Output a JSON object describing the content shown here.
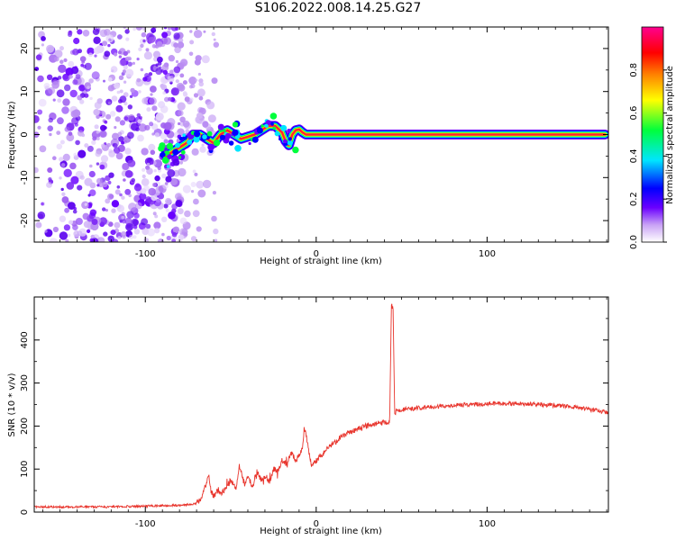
{
  "page": {
    "title": "S106.2022.008.14.25.G27"
  },
  "chart_data": [
    {
      "type": "heatmap",
      "xlabel": "Height of straight line (km)",
      "ylabel": "Frequency (Hz)",
      "xlim": [
        -165,
        171
      ],
      "ylim": [
        -25,
        25
      ],
      "x_ticks": [
        -100,
        0,
        100
      ],
      "y_ticks": [
        -20,
        -10,
        0,
        10,
        20
      ],
      "colorbar": {
        "label": "Normalized spectral amplitude",
        "range": [
          0,
          1
        ],
        "ticks": [
          "0.0",
          "0.2",
          "0.4",
          "0.6",
          "0.8"
        ],
        "colors": [
          "#ffffff",
          "#b585f0",
          "#6a00ff",
          "#0000ff",
          "#00e5ff",
          "#00ff3c",
          "#ffff00",
          "#ff8000",
          "#ff0000",
          "#ff0080"
        ]
      },
      "peak_ridge": {
        "x": [
          -88,
          -84,
          -80,
          -76,
          -72,
          -68,
          -64,
          -60,
          -56,
          -52,
          -48,
          -44,
          -40,
          -36,
          -32,
          -28,
          -24,
          -20,
          -18,
          -16,
          -14,
          -12,
          -10,
          -8,
          -6,
          -4,
          -2,
          0,
          10,
          40,
          80,
          120,
          160,
          169
        ],
        "y": [
          -5,
          -4,
          -3,
          -2,
          0,
          0,
          -1,
          -2,
          0,
          1,
          0,
          -1,
          -0.5,
          0,
          1,
          2,
          2,
          0.5,
          -1.5,
          -2.5,
          0,
          1,
          1.2,
          0.5,
          0,
          0,
          0,
          0,
          0,
          0,
          0,
          0,
          0,
          0
        ]
      },
      "noise_region_x": [
        -165,
        -62
      ]
    },
    {
      "type": "line",
      "xlabel": "Height of straight line (km)",
      "ylabel": "SNR (10 * v/v)",
      "xlim": [
        -165,
        171
      ],
      "ylim": [
        0,
        500
      ],
      "x_ticks": [
        -100,
        0,
        100
      ],
      "y_ticks": [
        0,
        100,
        200,
        300,
        400
      ],
      "color": "#e8342c",
      "x": [
        -165,
        -150,
        -130,
        -110,
        -90,
        -80,
        -75,
        -70,
        -67,
        -65,
        -63,
        -62,
        -60,
        -58,
        -55,
        -52,
        -50,
        -47,
        -45,
        -42,
        -40,
        -37,
        -35,
        -32,
        -30,
        -27,
        -25,
        -22,
        -20,
        -17,
        -15,
        -12,
        -10,
        -8,
        -7,
        -5,
        -3,
        0,
        5,
        10,
        15,
        20,
        25,
        30,
        35,
        40,
        43,
        44,
        45,
        46,
        47,
        48,
        50,
        55,
        60,
        70,
        80,
        90,
        100,
        110,
        120,
        130,
        140,
        150,
        160,
        171
      ],
      "y": [
        12,
        12,
        12,
        13,
        15,
        16,
        17,
        20,
        35,
        60,
        80,
        55,
        35,
        50,
        45,
        60,
        75,
        55,
        110,
        65,
        80,
        60,
        95,
        75,
        85,
        70,
        100,
        95,
        120,
        110,
        140,
        120,
        135,
        145,
        200,
        160,
        110,
        120,
        140,
        160,
        175,
        185,
        195,
        200,
        205,
        210,
        205,
        480,
        470,
        220,
        240,
        235,
        238,
        240,
        242,
        245,
        248,
        250,
        252,
        253,
        252,
        250,
        248,
        245,
        238,
        232
      ]
    }
  ],
  "colors": {
    "snr_line": "#e8342c",
    "ridge_peak": "#ff1f3a"
  }
}
